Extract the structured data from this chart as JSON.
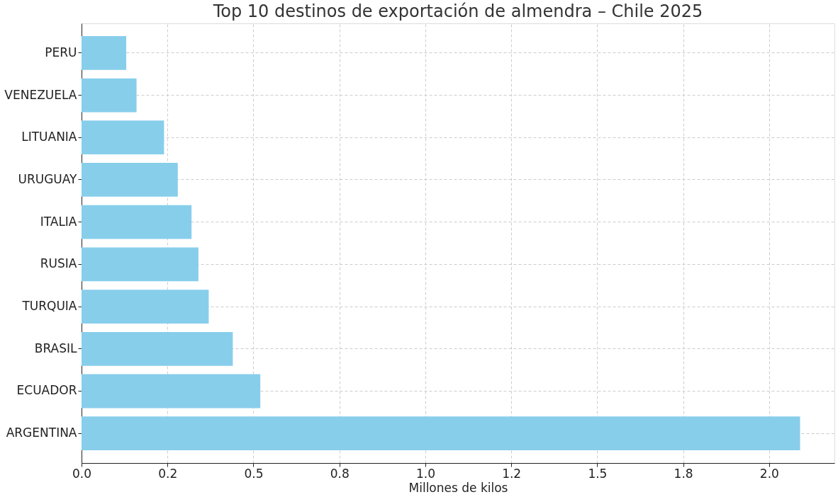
{
  "chart_data": {
    "type": "bar",
    "orientation": "horizontal",
    "title": "Top 10 destinos de exportación de almendra – Chile 2025",
    "xlabel": "Millones de kilos",
    "categories": [
      "PERU",
      "VENEZUELA",
      "LITUANIA",
      "URUGUAY",
      "ITALIA",
      "RUSIA",
      "TURQUIA",
      "BRASIL",
      "ECUADOR",
      "ARGENTINA"
    ],
    "values": [
      0.13,
      0.16,
      0.24,
      0.28,
      0.32,
      0.34,
      0.37,
      0.44,
      0.52,
      2.09
    ],
    "color": "#87ceeb",
    "xlim": [
      0,
      2.19
    ],
    "xticks": [
      {
        "value": 0,
        "label": "0.0"
      },
      {
        "value": 0.25,
        "label": "0.2"
      },
      {
        "value": 0.5,
        "label": "0.5"
      },
      {
        "value": 0.75,
        "label": "0.8"
      },
      {
        "value": 1.0,
        "label": "1.0"
      },
      {
        "value": 1.25,
        "label": "1.2"
      },
      {
        "value": 1.5,
        "label": "1.5"
      },
      {
        "value": 1.75,
        "label": "1.8"
      },
      {
        "value": 2.0,
        "label": "2.0"
      }
    ],
    "grid": true,
    "line_style": "dashed"
  }
}
